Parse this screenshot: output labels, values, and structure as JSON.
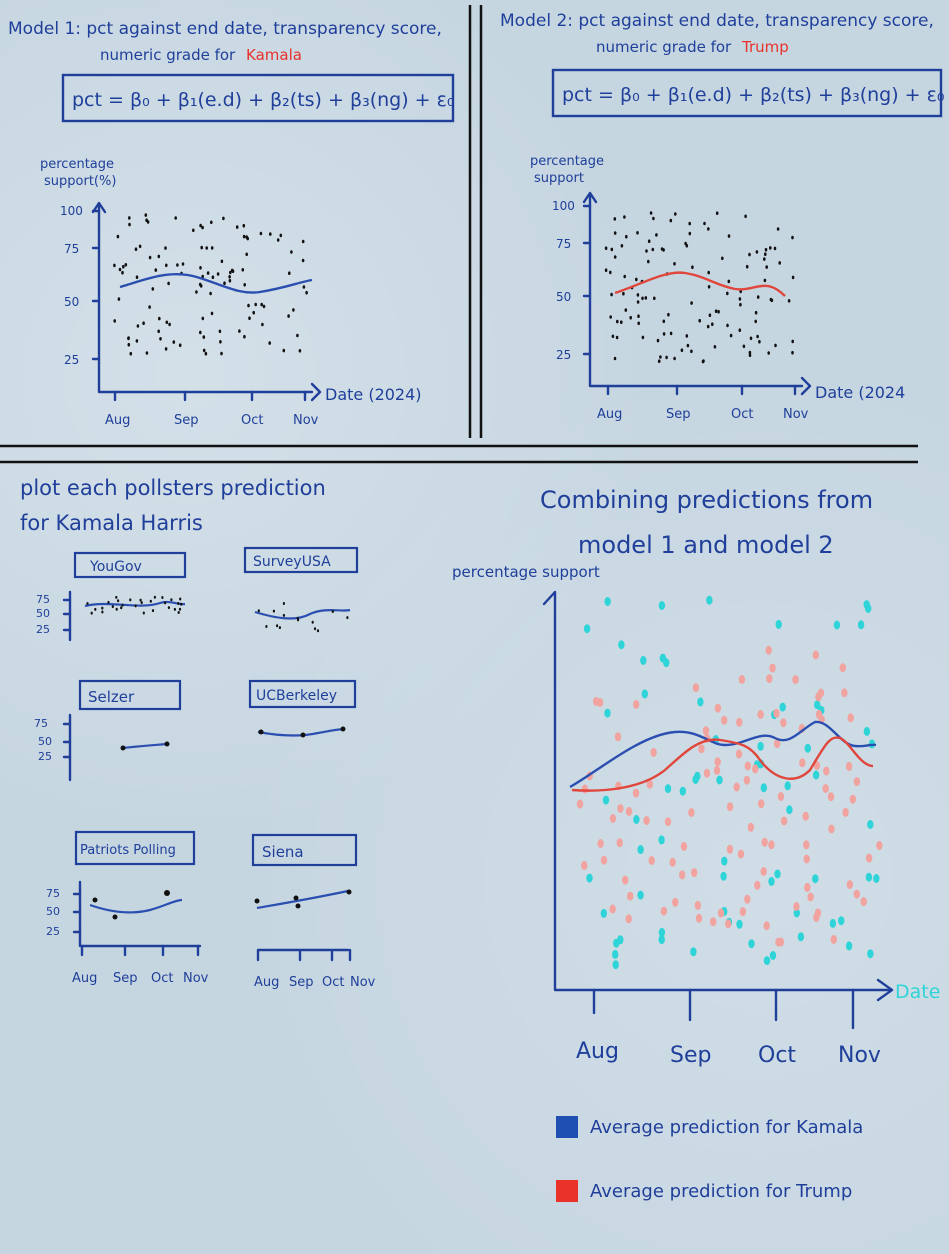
{
  "panel1": {
    "title_line1": "Model 1: pct against end date, transparency score,",
    "title_line2_prefix": "numeric grade for",
    "title_line2_highlight": "Kamala",
    "formula": "pct = β₀ + β₁(e.d) + β₂(ts) + β₃(ng) + ε₀",
    "ylabel_line1": "percentage",
    "ylabel_line2": "support(%)",
    "xlabel": "Date (2024)",
    "yticks": [
      "100",
      "75",
      "50",
      "25"
    ],
    "xticks": [
      "Aug",
      "Sep",
      "Oct",
      "Nov"
    ]
  },
  "panel2": {
    "title_line1": "Model 2: pct against end date, transparency score,",
    "title_line2_prefix": "numeric grade for",
    "title_line2_highlight": "Trump",
    "formula": "pct = β₀ + β₁(e.d) + β₂(ts) + β₃(ng) + ε₀",
    "ylabel_line1": "percentage",
    "ylabel_line2": "support",
    "xlabel": "Date (2024",
    "yticks": [
      "100",
      "75",
      "50",
      "25"
    ],
    "xticks": [
      "Aug",
      "Sep",
      "Oct",
      "Nov"
    ]
  },
  "panel3": {
    "title_line1": "plot each pollsters prediction",
    "title_line2": "for Kamala Harris",
    "pollsters": [
      "YouGov",
      "SurveyUSA",
      "Selzer",
      "UCBerkeley",
      "Patriots Polling",
      "Siena"
    ],
    "yticks": [
      "75",
      "50",
      "25"
    ],
    "xticks": [
      "Aug",
      "Sep",
      "Oct",
      "Nov"
    ]
  },
  "panel4": {
    "title_line1": "Combining predictions from",
    "title_line2": "model 1 and model 2",
    "ylabel": "percentage support",
    "xlabel": "Date",
    "xticks": [
      "Aug",
      "Sep",
      "Oct",
      "Nov"
    ],
    "legend_kamala": "Average prediction for Kamala",
    "legend_trump": "Average prediction for Trump"
  },
  "colors": {
    "ink": "#1f3f9a",
    "kamala_line": "#2b4fb0",
    "trump_line": "#e0463c",
    "highlight_red": "#e8322a",
    "kamala_dots": "#2fd4d8",
    "trump_dots": "#f1a3a0",
    "legend_blue": "#1f4fb3",
    "legend_red": "#e8322a"
  }
}
